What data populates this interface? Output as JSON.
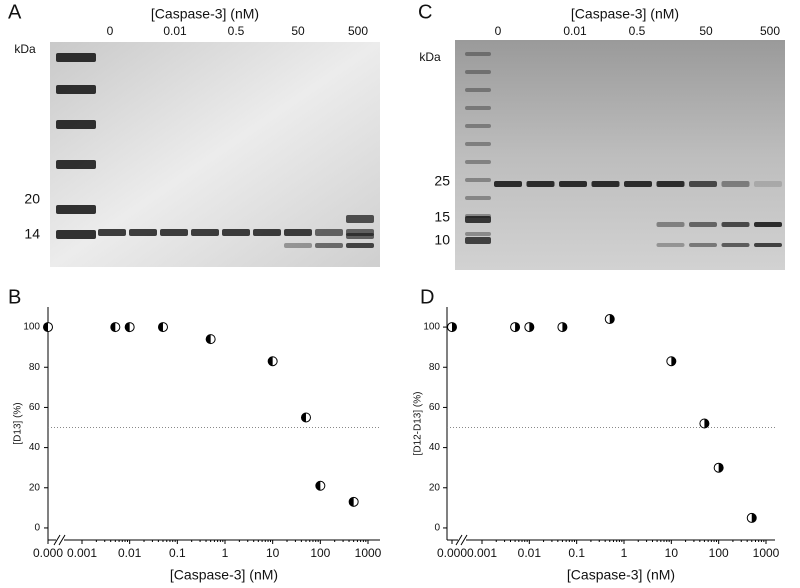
{
  "gels": [
    {
      "letter": "A",
      "title": "[Caspase-3] (nM)",
      "lanes": [
        "0",
        "0.01",
        "0.5",
        "50",
        "500"
      ],
      "unit": "kDa",
      "markers": [
        "20",
        "14"
      ]
    },
    {
      "letter": "C",
      "title": "[Caspase-3] (nM)",
      "lanes": [
        "0",
        "0.01",
        "0.5",
        "50",
        "500"
      ],
      "unit": "kDa",
      "markers": [
        "25",
        "15",
        "10"
      ]
    }
  ],
  "chart_data": [
    {
      "type": "line",
      "letter": "B",
      "ylabel": "[D13] (%)",
      "xlabel": "[Caspase-3] (nM)",
      "color": "#000000",
      "xscale": "log",
      "x": [
        0,
        0.005,
        0.01,
        0.05,
        0.5,
        10,
        50,
        100,
        500
      ],
      "values": [
        100,
        100,
        100,
        100,
        94,
        83,
        55,
        21,
        13
      ],
      "xlim": [
        0.001,
        1000
      ],
      "ylim": [
        -6,
        110
      ],
      "xticks": [
        {
          "value": 0,
          "label": "0.000"
        },
        0.001,
        0.01,
        0.1,
        1,
        10,
        100,
        1000
      ],
      "yticks": [
        0,
        20,
        40,
        60,
        80,
        100
      ],
      "reference_line": 50
    },
    {
      "type": "line",
      "letter": "D",
      "ylabel": "[D12-D13] (%)",
      "xlabel": "[Caspase-3] (nM)",
      "color": "#000000",
      "xscale": "log",
      "x": [
        0,
        0.005,
        0.01,
        0.05,
        0.5,
        10,
        50,
        100,
        500
      ],
      "values": [
        100,
        100,
        100,
        100,
        104,
        83,
        52,
        30,
        5
      ],
      "xlim": [
        0.001,
        1000
      ],
      "ylim": [
        -6,
        110
      ],
      "xticks": [
        {
          "value": 0,
          "label": "0.000"
        },
        0.001,
        0.01,
        0.1,
        1,
        10,
        100,
        1000
      ],
      "yticks": [
        0,
        20,
        40,
        60,
        80,
        100
      ],
      "reference_line": 50
    }
  ]
}
